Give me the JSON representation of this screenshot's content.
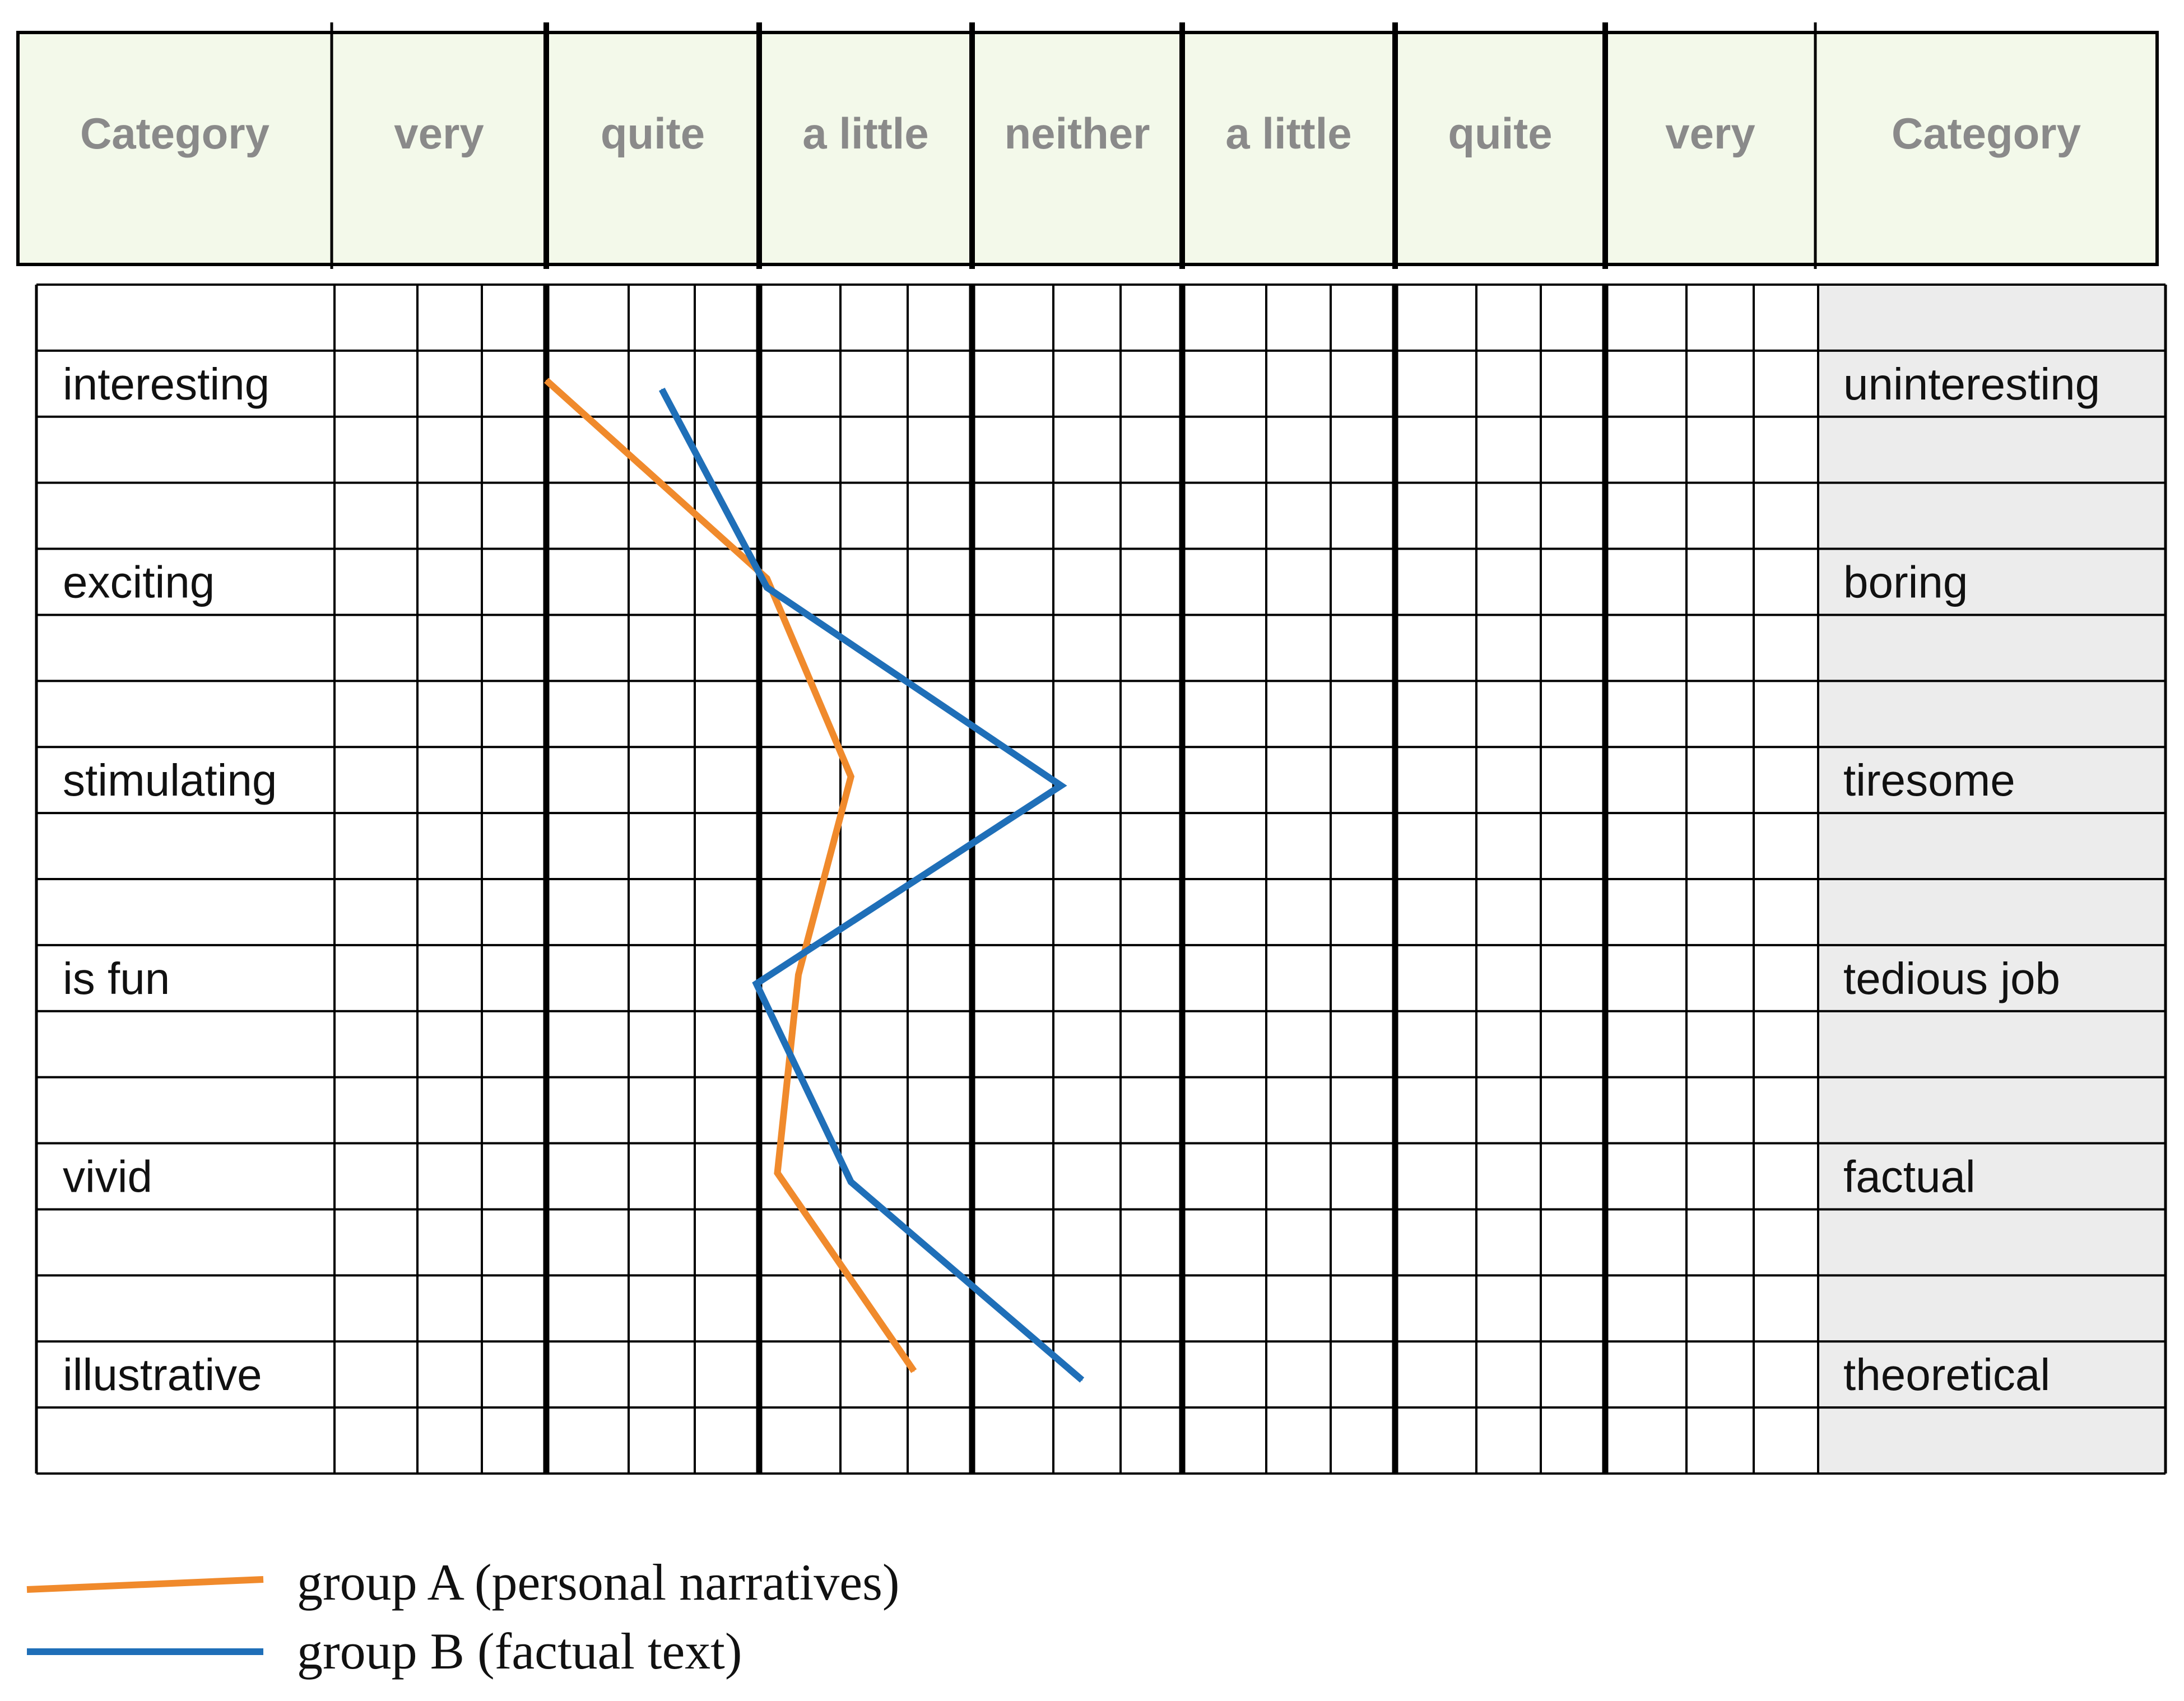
{
  "chart_data": {
    "type": "line",
    "scale_header": [
      "Category",
      "very",
      "quite",
      "a little",
      "neither",
      "a little",
      "quite",
      "very",
      "Category"
    ],
    "left_categories": [
      "interesting",
      "exciting",
      "stimulating",
      "is fun",
      "vivid",
      "illustrative"
    ],
    "right_categories": [
      "uninteresting",
      "boring",
      "tiresome",
      "tedious job",
      "factual",
      "theoretical"
    ],
    "series": [
      {
        "name": "group A (personal narratives)",
        "color": "#f08a2c",
        "values": [
          2.0,
          3.05,
          3.45,
          3.2,
          3.1,
          3.75
        ]
      },
      {
        "name": "group B (factual text)",
        "color": "#1f6fb8",
        "values": [
          2.55,
          3.05,
          4.45,
          3.0,
          3.45,
          4.55
        ]
      }
    ],
    "colors": {
      "header_bg": "#f3f9ea",
      "right_column_bg": "#ececec",
      "grid": "#000000"
    }
  }
}
